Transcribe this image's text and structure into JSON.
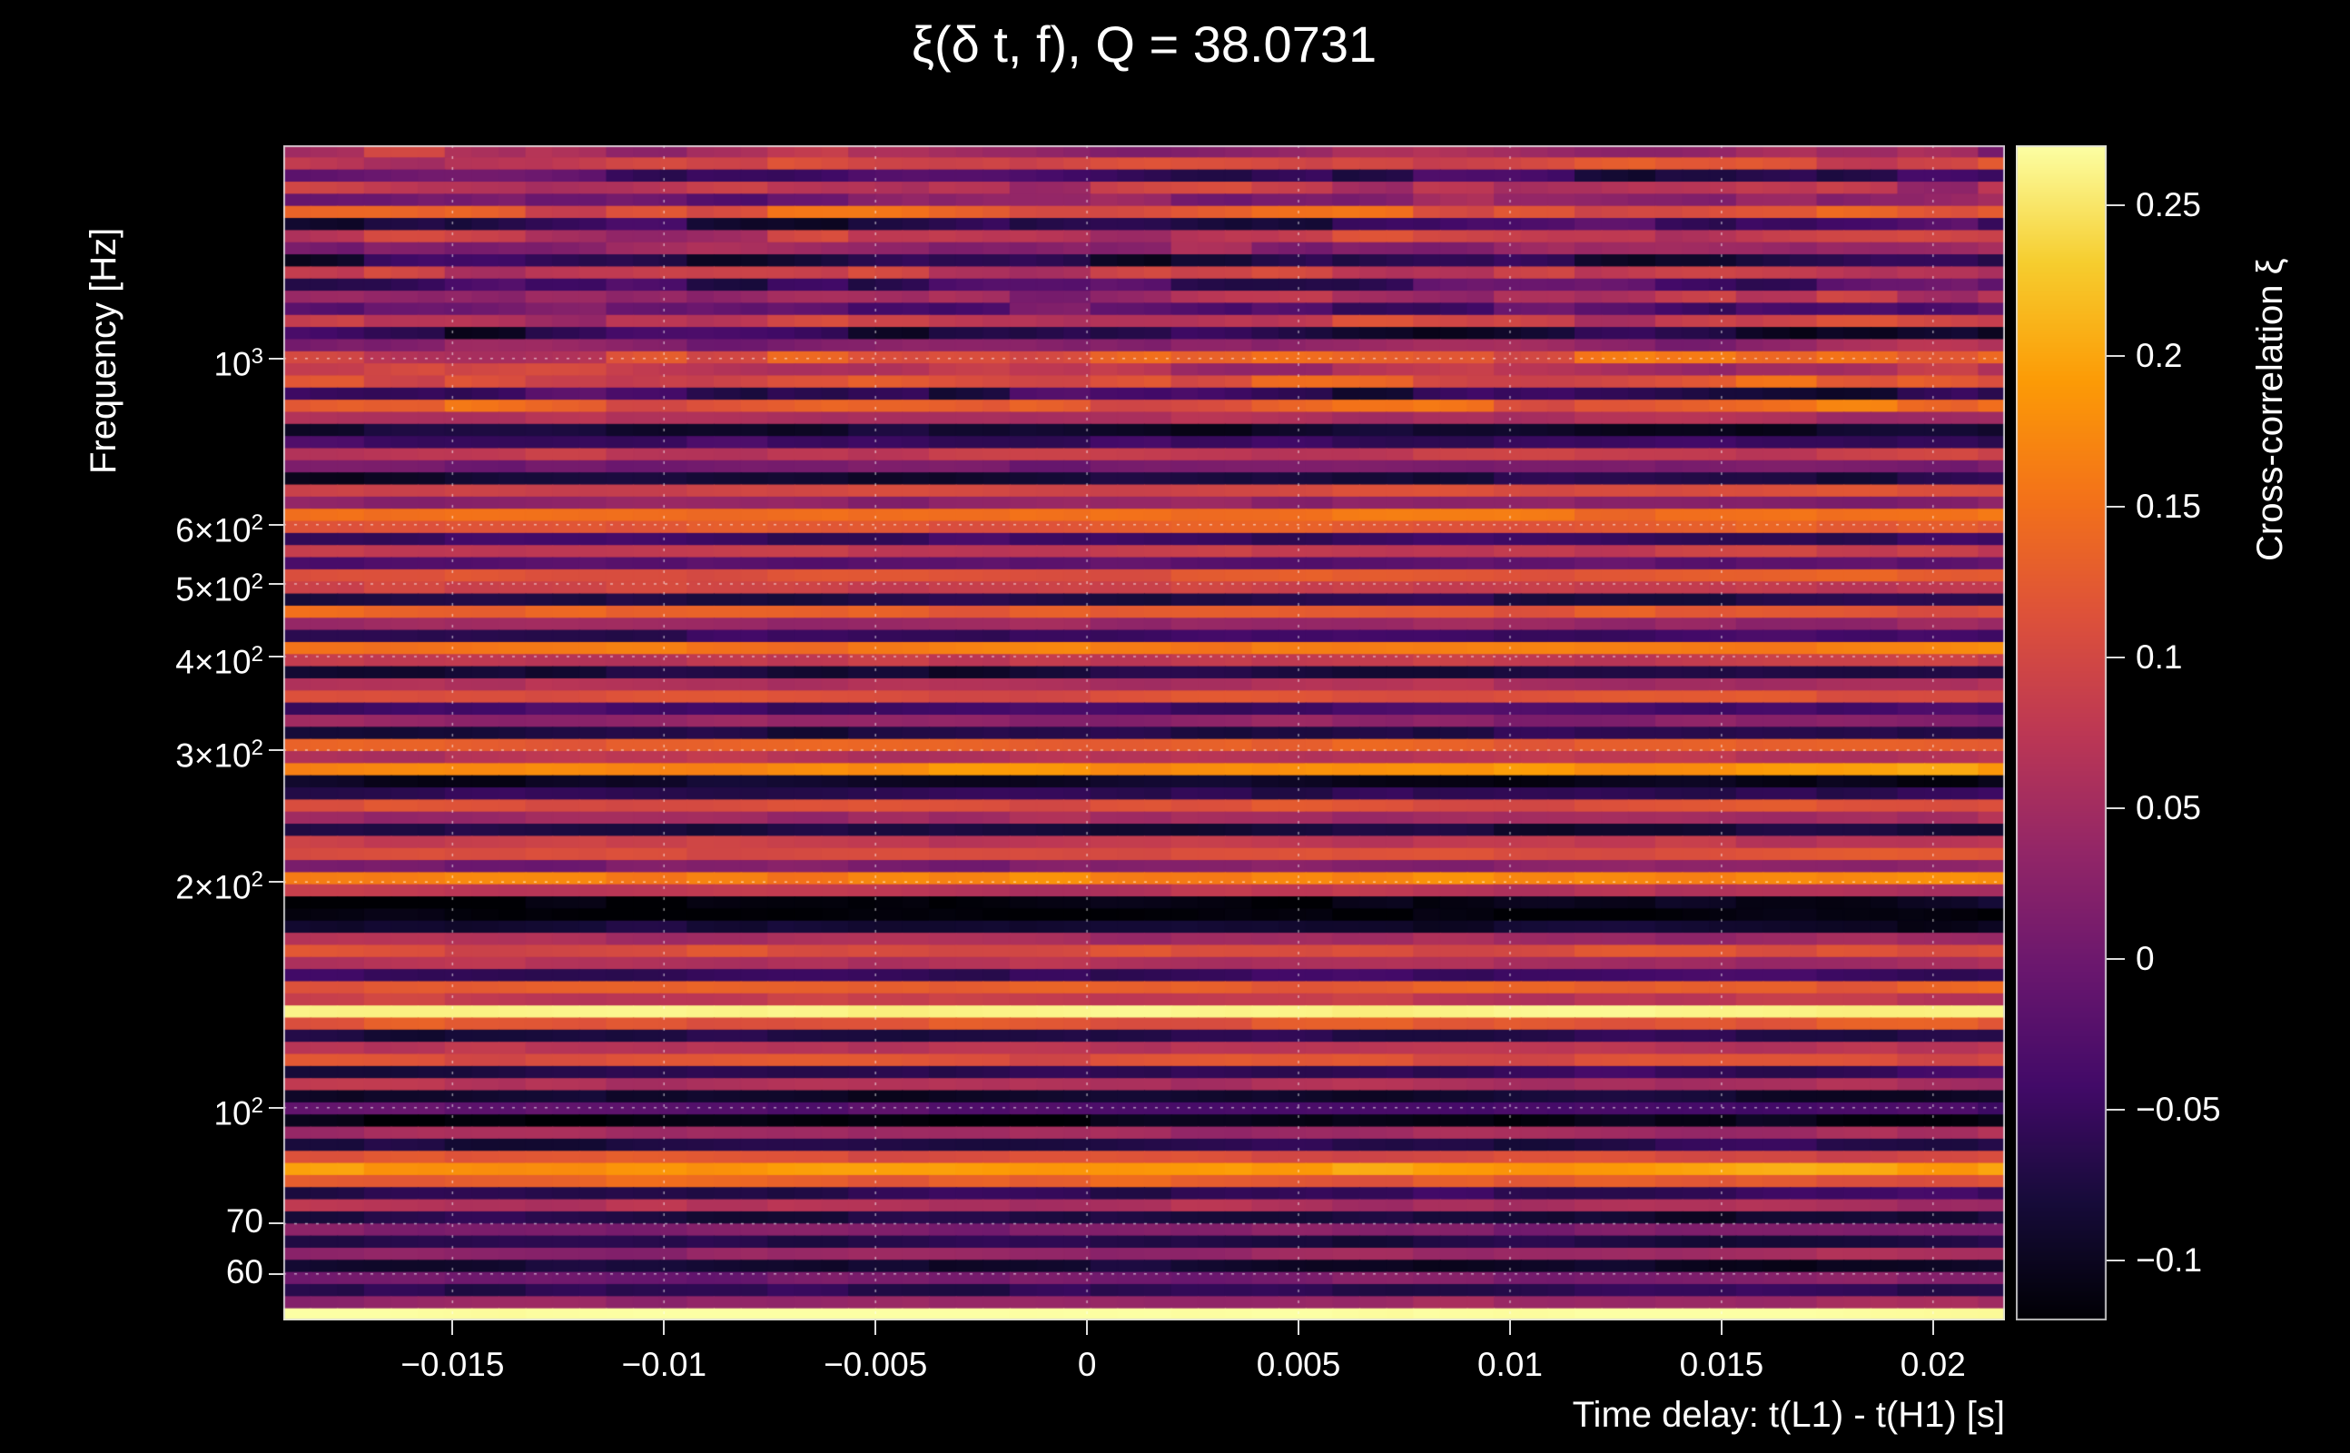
{
  "title": "ξ(δ t, f), Q = 38.0731",
  "axes": {
    "x": {
      "label": "Time delay: t(L1) - t(H1) [s]",
      "min": -0.019,
      "max": 0.0217,
      "ticks": [
        {
          "value": -0.015,
          "label": "−0.015"
        },
        {
          "value": -0.01,
          "label": "−0.01"
        },
        {
          "value": -0.005,
          "label": "−0.005"
        },
        {
          "value": 0,
          "label": "0"
        },
        {
          "value": 0.005,
          "label": "0.005"
        },
        {
          "value": 0.01,
          "label": "0.01"
        },
        {
          "value": 0.015,
          "label": "0.015"
        },
        {
          "value": 0.02,
          "label": "0.02"
        }
      ]
    },
    "y": {
      "label": "Frequency [Hz]",
      "scale": "log",
      "min": 52,
      "max": 1925,
      "ticks": [
        {
          "value": 1000,
          "base": "10",
          "sup": "3"
        },
        {
          "value": 600,
          "base": "6×10",
          "sup": "2"
        },
        {
          "value": 500,
          "base": "5×10",
          "sup": "2"
        },
        {
          "value": 400,
          "base": "4×10",
          "sup": "2"
        },
        {
          "value": 300,
          "base": "3×10",
          "sup": "2"
        },
        {
          "value": 200,
          "base": "2×10",
          "sup": "2"
        },
        {
          "value": 100,
          "base": "10",
          "sup": "2"
        },
        {
          "value": 70,
          "base": "70",
          "sup": ""
        },
        {
          "value": 60,
          "base": "60",
          "sup": ""
        }
      ]
    },
    "z": {
      "label": "Cross-correlation ξ",
      "min": -0.12,
      "max": 0.27,
      "ticks": [
        {
          "value": 0.25,
          "label": "0.25"
        },
        {
          "value": 0.2,
          "label": "0.2"
        },
        {
          "value": 0.15,
          "label": "0.15"
        },
        {
          "value": 0.1,
          "label": "0.1"
        },
        {
          "value": 0.05,
          "label": "0.05"
        },
        {
          "value": 0,
          "label": "0"
        },
        {
          "value": -0.05,
          "label": "−0.05"
        },
        {
          "value": -0.1,
          "label": "−0.1"
        }
      ]
    }
  },
  "chart_data": {
    "type": "heatmap",
    "title": "ξ(δ t, f), Q = 38.0731",
    "q_value": 38.0731,
    "xlabel": "Time delay: t(L1) - t(H1) [s]",
    "ylabel": "Frequency [Hz]",
    "zlabel": "Cross-correlation ξ",
    "x_range": [
      -0.019,
      0.0217
    ],
    "freq_range_hz": [
      52,
      1925
    ],
    "y_scale": "log",
    "rows_log_spaced": true,
    "vmin": -0.12,
    "vmax": 0.27,
    "colormap": "inferno",
    "colormap_stops": [
      {
        "t": 0.0,
        "rgb": [
          0,
          0,
          4
        ]
      },
      {
        "t": 0.1,
        "rgb": [
          22,
          11,
          57
        ]
      },
      {
        "t": 0.2,
        "rgb": [
          66,
          10,
          104
        ]
      },
      {
        "t": 0.3,
        "rgb": [
          106,
          23,
          110
        ]
      },
      {
        "t": 0.4,
        "rgb": [
          147,
          38,
          103
        ]
      },
      {
        "t": 0.5,
        "rgb": [
          188,
          55,
          84
        ]
      },
      {
        "t": 0.6,
        "rgb": [
          221,
          81,
          58
        ]
      },
      {
        "t": 0.7,
        "rgb": [
          243,
          114,
          25
        ]
      },
      {
        "t": 0.8,
        "rgb": [
          252,
          155,
          6
        ]
      },
      {
        "t": 0.9,
        "rgb": [
          246,
          205,
          46
        ]
      },
      {
        "t": 1.0,
        "rgb": [
          252,
          255,
          164
        ]
      }
    ],
    "row_values_top_to_bottom": [
      0.05,
      0.1,
      -0.05,
      0.07,
      0.02,
      0.12,
      -0.06,
      0.08,
      0.03,
      -0.07,
      0.09,
      -0.04,
      0.05,
      -0.02,
      0.08,
      -0.07,
      0.03,
      0.12,
      0.07,
      0.11,
      -0.06,
      0.13,
      0.06,
      -0.09,
      -0.05,
      0.08,
      0.01,
      -0.08,
      0.1,
      0.03,
      0.15,
      0.12,
      -0.05,
      0.08,
      -0.02,
      0.12,
      0.09,
      -0.07,
      0.13,
      0.04,
      -0.05,
      0.16,
      0.08,
      -0.08,
      0.06,
      0.11,
      -0.04,
      0.03,
      -0.07,
      0.13,
      0.07,
      0.18,
      -0.1,
      -0.06,
      0.11,
      0.05,
      -0.08,
      0.08,
      0.11,
      0.02,
      0.17,
      0.07,
      -0.11,
      -0.12,
      -0.09,
      0.05,
      0.11,
      0.06,
      -0.05,
      0.13,
      0.08,
      0.26,
      0.12,
      -0.07,
      0.07,
      0.11,
      -0.06,
      0.06,
      -0.09,
      -0.03,
      -0.11,
      0.05,
      -0.07,
      0.11,
      0.19,
      0.13,
      -0.06,
      0.06,
      -0.08,
      0.02,
      -0.07,
      0.04,
      -0.09,
      0.01,
      -0.06,
      0.04,
      0.27
    ],
    "notable_features": [
      {
        "frequency_hz": 137,
        "value": 0.26,
        "description": "bright cream horizontal band"
      },
      {
        "frequency_hz": 53,
        "value": 0.27,
        "description": "bright cream band at plot bottom"
      },
      {
        "frequency_hz": 180,
        "value": -0.12,
        "description": "dark/black band below 2×10² Hz"
      },
      {
        "frequency_hz": 85,
        "value": 0.19,
        "description": "bright orange band"
      }
    ],
    "render_hints": {
      "grid": "dotted-white",
      "grid_color": "rgba(255,255,255,0.55)",
      "noise_amplitude": 0.012,
      "top_blotch_amplitude": 0.03,
      "legend_position": "right-colorbar"
    }
  }
}
